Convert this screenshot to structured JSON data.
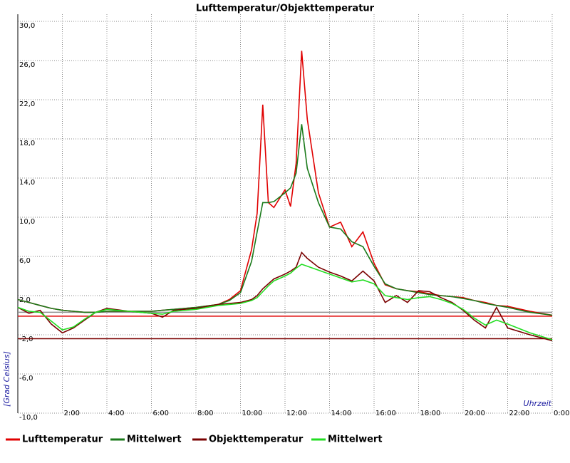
{
  "chart_data": {
    "type": "line",
    "title": "Lufttemperatur/Objekttemperatur",
    "ylabel": "[Grad Celsius]",
    "xlabel": "Uhrzeit",
    "x": [
      0,
      0.5,
      1,
      1.5,
      2,
      2.5,
      3,
      3.5,
      4,
      5,
      6,
      6.5,
      7,
      8,
      9,
      9.5,
      10,
      10.5,
      10.75,
      11,
      11.25,
      11.5,
      12,
      12.25,
      12.5,
      12.75,
      13,
      13.5,
      14,
      14.5,
      15,
      15.5,
      16,
      16.5,
      17,
      17.5,
      18,
      18.5,
      19,
      19.5,
      20,
      20.5,
      21,
      21.5,
      22,
      23,
      24
    ],
    "series": [
      {
        "name": "Lufttemperatur",
        "color": "#e00000",
        "values": [
          1.6,
          1.3,
          1.0,
          0.7,
          0.5,
          0.4,
          0.3,
          0.3,
          0.4,
          0.4,
          0.4,
          0.5,
          0.6,
          0.8,
          1.1,
          1.6,
          2.5,
          6.7,
          10.4,
          21.5,
          11.5,
          11.0,
          12.8,
          11.1,
          15.5,
          27.0,
          20.0,
          12.5,
          9.0,
          9.5,
          7.0,
          8.5,
          5.3,
          3.1,
          2.7,
          2.5,
          2.4,
          2.2,
          2.0,
          1.9,
          1.8,
          1.5,
          1.3,
          1.0,
          0.9,
          0.4,
          0.0
        ]
      },
      {
        "name": "Mittelwert",
        "color": "#1a7a1a",
        "values": [
          1.6,
          1.3,
          1.0,
          0.7,
          0.5,
          0.4,
          0.3,
          0.3,
          0.4,
          0.4,
          0.4,
          0.5,
          0.6,
          0.8,
          1.1,
          1.5,
          2.3,
          5.5,
          8.5,
          11.5,
          11.5,
          11.6,
          12.5,
          13.0,
          14.5,
          19.5,
          15.0,
          11.5,
          9.0,
          8.8,
          7.5,
          7.0,
          5.0,
          3.2,
          2.7,
          2.5,
          2.3,
          2.1,
          2.0,
          1.9,
          1.7,
          1.5,
          1.2,
          1.0,
          0.8,
          0.3,
          0.0
        ]
      },
      {
        "name": "Objekttemperatur",
        "color": "#7a0000",
        "values": [
          0.8,
          0.2,
          0.5,
          -0.9,
          -1.8,
          -1.3,
          -0.5,
          0.3,
          0.7,
          0.4,
          0.2,
          -0.2,
          0.5,
          0.7,
          1.1,
          1.2,
          1.3,
          1.6,
          2.0,
          2.7,
          3.2,
          3.7,
          4.2,
          4.5,
          4.9,
          6.4,
          5.8,
          4.9,
          4.4,
          4.0,
          3.5,
          4.5,
          3.5,
          1.3,
          2.0,
          1.3,
          2.5,
          2.4,
          1.8,
          1.3,
          0.5,
          -0.5,
          -1.3,
          0.8,
          -1.3,
          -2.0,
          -2.6
        ]
      },
      {
        "name": "Mittelwert",
        "color": "#22dd22",
        "values": [
          0.8,
          0.4,
          0.3,
          -0.6,
          -1.5,
          -1.2,
          -0.4,
          0.3,
          0.6,
          0.4,
          0.2,
          0.1,
          0.4,
          0.6,
          1.0,
          1.1,
          1.2,
          1.5,
          1.8,
          2.4,
          3.0,
          3.5,
          4.0,
          4.3,
          4.8,
          5.2,
          5.0,
          4.6,
          4.2,
          3.8,
          3.4,
          3.6,
          3.2,
          2.0,
          1.8,
          1.6,
          1.8,
          1.9,
          1.6,
          1.2,
          0.6,
          -0.3,
          -1.0,
          -0.5,
          -0.9,
          -1.8,
          -2.5
        ]
      }
    ],
    "hlines": [
      {
        "value": 0.3,
        "color": "#909090"
      },
      {
        "value": -0.1,
        "color": "#e00000"
      },
      {
        "value": -2.4,
        "color": "#7a0000"
      }
    ],
    "xlim": [
      0,
      24
    ],
    "xticks": [
      {
        "value": 2,
        "label": "2:00"
      },
      {
        "value": 4,
        "label": "4:00"
      },
      {
        "value": 6,
        "label": "6:00"
      },
      {
        "value": 8,
        "label": "8:00"
      },
      {
        "value": 10,
        "label": "10:00"
      },
      {
        "value": 12,
        "label": "12:00"
      },
      {
        "value": 14,
        "label": "14:00"
      },
      {
        "value": 16,
        "label": "16:00"
      },
      {
        "value": 18,
        "label": "18:00"
      },
      {
        "value": 20,
        "label": "20:00"
      },
      {
        "value": 22,
        "label": "22:00"
      },
      {
        "value": 24,
        "label": "0:00"
      }
    ],
    "ylim": [
      -10,
      30
    ],
    "yticks": [
      {
        "value": -10,
        "label": "-10,0"
      },
      {
        "value": -6,
        "label": "-6,0"
      },
      {
        "value": -2,
        "label": "-2,0"
      },
      {
        "value": 2,
        "label": "2,0"
      },
      {
        "value": 6,
        "label": "6,0"
      },
      {
        "value": 10,
        "label": "10,0"
      },
      {
        "value": 14,
        "label": "14,0"
      },
      {
        "value": 18,
        "label": "18,0"
      },
      {
        "value": 22,
        "label": "22,0"
      },
      {
        "value": 26,
        "label": "26,0"
      },
      {
        "value": 30,
        "label": "30,0"
      }
    ],
    "grid": true
  }
}
